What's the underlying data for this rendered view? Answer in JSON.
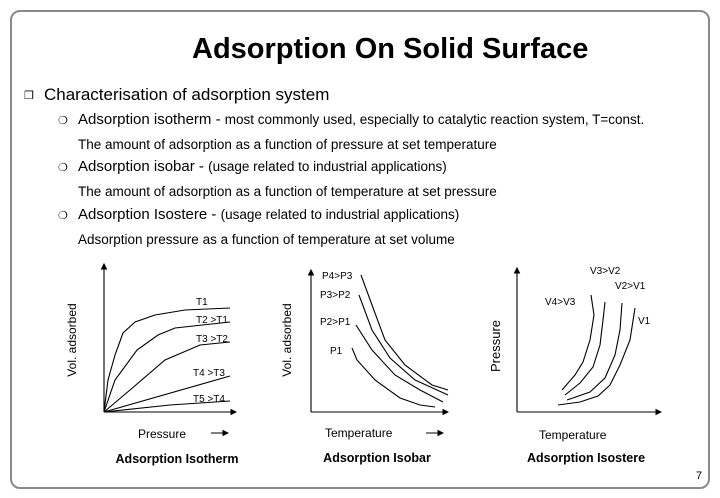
{
  "title": "Adsorption On Solid Surface",
  "bullets": {
    "main": "Characterisation of adsorption system",
    "isotherm": {
      "term": "Adsorption isotherm - ",
      "note": "most commonly used, especially to catalytic reaction system, T=const.",
      "desc": "The amount of adsorption as a function of pressure at set temperature"
    },
    "isobar": {
      "term": "Adsorption isobar - ",
      "note": "(usage related to industrial applications)",
      "desc": "The amount of adsorption as a function of temperature at set pressure"
    },
    "isostere": {
      "term": "Adsorption Isostere - ",
      "note": "(usage related to industrial applications)",
      "desc": "Adsorption pressure as a function of temperature at set volume"
    }
  },
  "diagrams": {
    "isotherm": {
      "caption": "Adsorption Isotherm",
      "xlabel": "Pressure",
      "ylabel": "Vol. adsorbed",
      "curves": [
        "T1",
        "T2 >T1",
        "T3 >T2",
        "T4 >T3",
        "T5 >T4"
      ]
    },
    "isobar": {
      "caption": "Adsorption Isobar",
      "xlabel": "Temperature",
      "ylabel": "Vol. adsorbed",
      "curves": [
        "P4>P3",
        "P3>P2",
        "P2>P1",
        "P1"
      ]
    },
    "isostere": {
      "caption": "Adsorption Isostere",
      "xlabel": "Temperature",
      "ylabel": "Pressure",
      "curves": [
        "V3>V2",
        "V2>V1",
        "V4>V3",
        "V1"
      ]
    }
  },
  "page_number": "7"
}
